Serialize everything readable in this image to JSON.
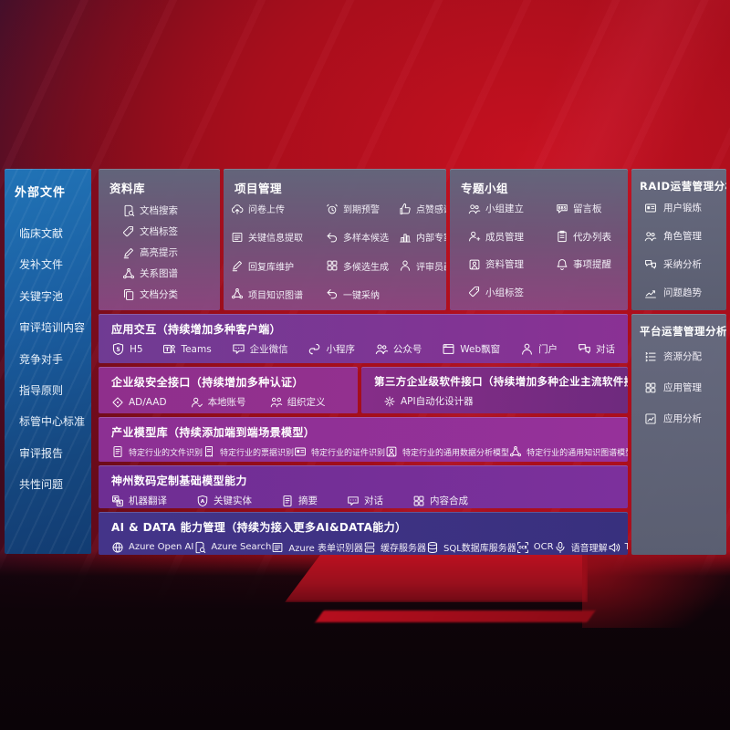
{
  "colors": {
    "background_red": "#b01020",
    "sidebar_blue": "#1a63a8",
    "panel_slate": "#5f6779",
    "row_purple": "#8a3194",
    "row_magenta": "#8f2f8c",
    "row_violet": "#6e2e93",
    "row_indigo": "#3e3389"
  },
  "external": {
    "title": "外部文件",
    "items": [
      "临床文献",
      "发补文件",
      "关键字池",
      "审评培训内容",
      "竞争对手",
      "指导原则",
      "标管中心标准",
      "审评报告",
      "共性问题"
    ]
  },
  "libraries": {
    "title": "资料库",
    "items": [
      {
        "icon": "doc-search",
        "label": "文档搜索"
      },
      {
        "icon": "tag",
        "label": "文档标签"
      },
      {
        "icon": "pen",
        "label": "高亮提示"
      },
      {
        "icon": "net",
        "label": "关系图谱"
      },
      {
        "icon": "copy",
        "label": "文档分类"
      }
    ]
  },
  "projects": {
    "title": "项目管理",
    "items": [
      {
        "icon": "cloud-up",
        "label": "问卷上传"
      },
      {
        "icon": "alarm",
        "label": "到期预警"
      },
      {
        "icon": "thumb",
        "label": "点赞感谢"
      },
      {
        "icon": "frame-doc",
        "label": "关键信息提取"
      },
      {
        "icon": "reply",
        "label": "多样本候选"
      },
      {
        "icon": "podium",
        "label": "内部专家排名"
      },
      {
        "icon": "pen",
        "label": "回复库维护"
      },
      {
        "icon": "grid",
        "label": "多候选生成"
      },
      {
        "icon": "person",
        "label": "评审员画像"
      },
      {
        "icon": "net",
        "label": "项目知识图谱"
      },
      {
        "icon": "reply",
        "label": "一键采纳"
      }
    ]
  },
  "groups": {
    "title": "专题小组",
    "items": [
      {
        "icon": "people",
        "label": "小组建立"
      },
      {
        "icon": "bbs",
        "label": "留言板"
      },
      {
        "icon": "person-add",
        "label": "成员管理"
      },
      {
        "icon": "clipboard",
        "label": "代办列表"
      },
      {
        "icon": "album",
        "label": "资料管理"
      },
      {
        "icon": "bell",
        "label": "事项提醒"
      },
      {
        "icon": "tag",
        "label": "小组标签"
      }
    ]
  },
  "raid": {
    "title": "RAID运营管理分析",
    "items": [
      {
        "icon": "card",
        "label": "用户锻炼"
      },
      {
        "icon": "people",
        "label": "角色管理"
      },
      {
        "icon": "qa",
        "label": "采纳分析"
      },
      {
        "icon": "trend",
        "label": "问题趋势"
      }
    ]
  },
  "platform": {
    "title": "平台运营管理分析",
    "items": [
      {
        "icon": "list",
        "label": "资源分配"
      },
      {
        "icon": "grid",
        "label": "应用管理"
      },
      {
        "icon": "chart-frame",
        "label": "应用分析"
      }
    ]
  },
  "interaction": {
    "title": "应用交互（持续增加多种客户端）",
    "items": [
      {
        "icon": "shield-5",
        "label": "H5"
      },
      {
        "icon": "teams",
        "label": "Teams"
      },
      {
        "icon": "chat",
        "label": "企业微信"
      },
      {
        "icon": "s-curve",
        "label": "小程序"
      },
      {
        "icon": "people",
        "label": "公众号"
      },
      {
        "icon": "window",
        "label": "Web飘窗"
      },
      {
        "icon": "person",
        "label": "门户"
      },
      {
        "icon": "qa",
        "label": "对话"
      }
    ]
  },
  "security": {
    "title": "企业级安全接口（持续增加多种认证）",
    "items": [
      {
        "icon": "diamond",
        "label": "AD/AAD"
      },
      {
        "icon": "person-check",
        "label": "本地账号"
      },
      {
        "icon": "org",
        "label": "组织定义"
      }
    ]
  },
  "thirdparty": {
    "title": "第三方企业级软件接口（持续增加多种企业主流软件接口）",
    "items": [
      {
        "icon": "gear",
        "label": "API自动化设计器"
      }
    ]
  },
  "industry": {
    "title": "产业模型库（持续添加端到端场景模型）",
    "items": [
      {
        "icon": "doc",
        "label": "特定行业的文件识别"
      },
      {
        "icon": "receipt",
        "label": "特定行业的票据识别"
      },
      {
        "icon": "card",
        "label": "特定行业的证件识别"
      },
      {
        "icon": "album",
        "label": "特定行业的通用数据分析模型"
      },
      {
        "icon": "net",
        "label": "特定行业的通用知识图谱模型"
      }
    ]
  },
  "foundation": {
    "title": "神州数码定制基础模型能力",
    "items": [
      {
        "icon": "translate",
        "label": "机器翻译"
      },
      {
        "icon": "shield-a",
        "label": "关键实体"
      },
      {
        "icon": "doc",
        "label": "摘要"
      },
      {
        "icon": "chat",
        "label": "对话"
      },
      {
        "icon": "grid",
        "label": "内容合成"
      }
    ]
  },
  "aidata": {
    "title": "AI & DATA 能力管理（持续为接入更多AI&DATA能力）",
    "items": [
      {
        "icon": "swirl",
        "label": "Azure Open AI"
      },
      {
        "icon": "doc-search",
        "label": "Azure Search"
      },
      {
        "icon": "frame-doc",
        "label": "Azure 表单识别器"
      },
      {
        "icon": "server",
        "label": "缓存服务器"
      },
      {
        "icon": "db",
        "label": "SQL数据库服务器"
      },
      {
        "icon": "ocr",
        "label": "OCR"
      },
      {
        "icon": "mic",
        "label": "语音理解"
      },
      {
        "icon": "speaker",
        "label": "TTS"
      }
    ]
  }
}
